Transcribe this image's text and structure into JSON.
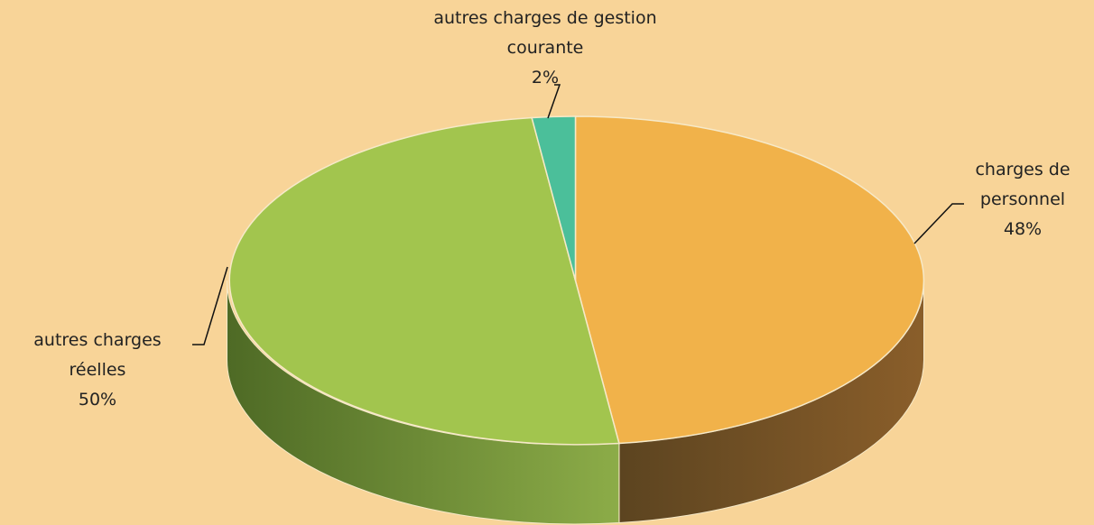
{
  "chart_data": {
    "type": "pie3d",
    "categories": [
      "charges de personnel",
      "autres charges réelles",
      "autres charges de gestion courante"
    ],
    "values": [
      48,
      50,
      2
    ],
    "value_labels": [
      "48%",
      "50%",
      "2%"
    ],
    "colors": [
      "#F1B24A",
      "#A2C54E",
      "#4BBF9A"
    ],
    "side_colors": [
      [
        "#8A5E2A",
        "#5C4420"
      ],
      [
        "#8CAC48",
        "#4E6A25"
      ],
      [
        "#2F8A6C",
        "#2F8A6C"
      ]
    ]
  }
}
